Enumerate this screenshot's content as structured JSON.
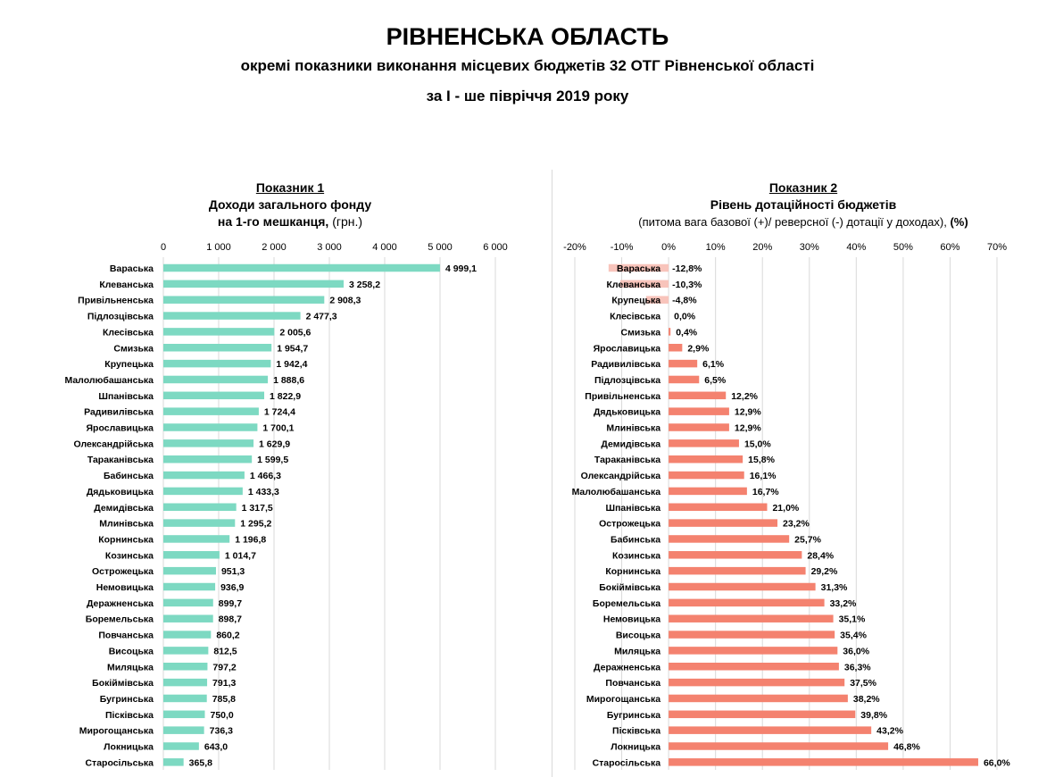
{
  "header": {
    "title": "РІВНЕНСЬКА ОБЛАСТЬ",
    "subtitle": "окремі показники виконання місцевих бюджетів 32 ОТГ Рівненської області",
    "period": "за І - ше півріччя 2019 року"
  },
  "colors": {
    "income_bar": "#7dd9c2",
    "subsidy_bar_positive": "#f4826f",
    "subsidy_bar_negative": "#f8c4bb",
    "grid": "#d9d9d9"
  },
  "chart_data": [
    {
      "type": "bar",
      "orientation": "horizontal",
      "label": "Показник 1",
      "title_line1": "Доходи загального фонду",
      "title_line2_bold": "на 1-го мешканця,",
      "title_line2_normal": " (грн.)",
      "xlim": [
        0,
        6000
      ],
      "ticks": [
        0,
        1000,
        2000,
        3000,
        4000,
        5000,
        6000
      ],
      "tick_labels": [
        "0",
        "1 000",
        "2 000",
        "3 000",
        "4 000",
        "5 000",
        "6 000"
      ],
      "grid": true,
      "categories": [
        "Вараська",
        "Клеванська",
        "Привільненська",
        "Підлозцівська",
        "Клесівська",
        "Смизька",
        "Крупецька",
        "Малолюбашанська",
        "Шпанівська",
        "Радивилівська",
        "Ярославицька",
        "Олександрійська",
        "Тараканівська",
        "Бабинська",
        "Дядьковицька",
        "Демидівська",
        "Млинівська",
        "Корнинська",
        "Козинська",
        "Острожецька",
        "Немовицька",
        "Деражненська",
        "Боремельська",
        "Повчанська",
        "Висоцька",
        "Миляцька",
        "Бокіймівська",
        "Бугринська",
        "Пісківська",
        "Мирогощанська",
        "Локницька",
        "Старосільська"
      ],
      "values": [
        4999.1,
        3258.2,
        2908.3,
        2477.3,
        2005.6,
        1954.7,
        1942.4,
        1888.6,
        1822.9,
        1724.4,
        1700.1,
        1629.9,
        1599.5,
        1466.3,
        1433.3,
        1317.5,
        1295.2,
        1196.8,
        1014.7,
        951.3,
        936.9,
        899.7,
        898.7,
        860.2,
        812.5,
        797.2,
        791.3,
        785.8,
        750.0,
        736.3,
        643.0,
        365.8
      ],
      "value_labels": [
        "4 999,1",
        "3 258,2",
        "2 908,3",
        "2 477,3",
        "2 005,6",
        "1 954,7",
        "1 942,4",
        "1 888,6",
        "1 822,9",
        "1 724,4",
        "1 700,1",
        "1 629,9",
        "1 599,5",
        "1 466,3",
        "1 433,3",
        "1 317,5",
        "1 295,2",
        "1 196,8",
        "1 014,7",
        "951,3",
        "936,9",
        "899,7",
        "898,7",
        "860,2",
        "812,5",
        "797,2",
        "791,3",
        "785,8",
        "750,0",
        "736,3",
        "643,0",
        "365,8"
      ]
    },
    {
      "type": "bar",
      "orientation": "horizontal",
      "label": "Показник 2",
      "title_line1": "Рівень дотаційності бюджетів",
      "title_line2_normal": "(питома вага базової (+)/ реверсної (-) дотації  у доходах),",
      "title_line2_bold": " (%)",
      "xlim": [
        -20,
        70
      ],
      "ticks": [
        -20,
        -10,
        0,
        10,
        20,
        30,
        40,
        50,
        60,
        70
      ],
      "tick_labels": [
        "-20%",
        "-10%",
        "0%",
        "10%",
        "20%",
        "30%",
        "40%",
        "50%",
        "60%",
        "70%"
      ],
      "grid": true,
      "categories": [
        "Вараська",
        "Клеванська",
        "Крупецька",
        "Клесівська",
        "Смизька",
        "Ярославицька",
        "Радивилівська",
        "Підлозцівська",
        "Привільненська",
        "Дядьковицька",
        "Млинівська",
        "Демидівська",
        "Тараканівська",
        "Олександрійська",
        "Малолюбашанська",
        "Шпанівська",
        "Острожецька",
        "Бабинська",
        "Козинська",
        "Корнинська",
        "Бокіймівська",
        "Боремельська",
        "Немовицька",
        "Висоцька",
        "Миляцька",
        "Деражненська",
        "Повчанська",
        "Мирогощанська",
        "Бугринська",
        "Пісківська",
        "Локницька",
        "Старосільська"
      ],
      "values": [
        -12.8,
        -10.3,
        -4.8,
        0.0,
        0.4,
        2.9,
        6.1,
        6.5,
        12.2,
        12.9,
        12.9,
        15.0,
        15.8,
        16.1,
        16.7,
        21.0,
        23.2,
        25.7,
        28.4,
        29.2,
        31.3,
        33.2,
        35.1,
        35.4,
        36.0,
        36.3,
        37.5,
        38.2,
        39.8,
        43.2,
        46.8,
        66.0
      ],
      "value_labels": [
        "-12,8%",
        "-10,3%",
        "-4,8%",
        "0,0%",
        "0,4%",
        "2,9%",
        "6,1%",
        "6,5%",
        "12,2%",
        "12,9%",
        "12,9%",
        "15,0%",
        "15,8%",
        "16,1%",
        "16,7%",
        "21,0%",
        "23,2%",
        "25,7%",
        "28,4%",
        "29,2%",
        "31,3%",
        "33,2%",
        "35,1%",
        "35,4%",
        "36,0%",
        "36,3%",
        "37,5%",
        "38,2%",
        "39,8%",
        "43,2%",
        "46,8%",
        "66,0%"
      ]
    }
  ]
}
